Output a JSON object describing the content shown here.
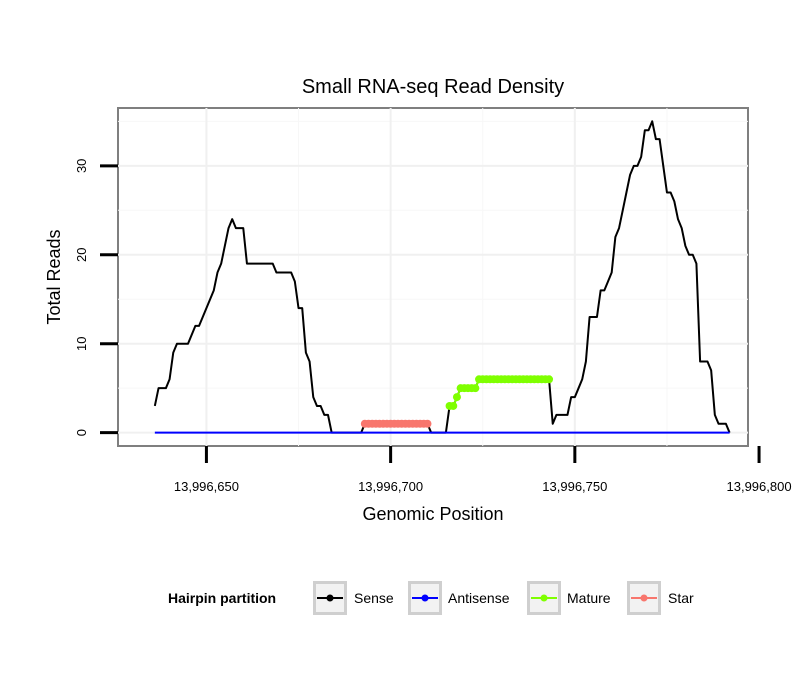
{
  "chart_data": {
    "type": "line",
    "title": "Small RNA-seq Read Density",
    "xlabel": "Genomic Position",
    "ylabel": "Total Reads",
    "xlim": [
      13996626,
      13996797
    ],
    "ylim": [
      -1.5,
      36.5
    ],
    "x_ticks": [
      13996650,
      13996700,
      13996750,
      13996800
    ],
    "x_tick_labels": [
      "13,996,650",
      "13,996,700",
      "13,996,750",
      "13,996,800"
    ],
    "y_ticks": [
      0,
      10,
      20,
      30
    ],
    "y_tick_labels": [
      "0",
      "10",
      "20",
      "30"
    ],
    "grid": true,
    "legend": {
      "title": "Hairpin partition",
      "position": "bottom",
      "entries": [
        "Sense",
        "Antisense",
        "Mature",
        "Star"
      ]
    },
    "series": [
      {
        "name": "Sense",
        "color": "#000000",
        "marker": false,
        "points": [
          [
            13996636,
            3
          ],
          [
            13996637,
            5
          ],
          [
            13996639,
            5
          ],
          [
            13996640,
            6
          ],
          [
            13996641,
            9
          ],
          [
            13996642,
            10
          ],
          [
            13996645,
            10
          ],
          [
            13996647,
            12
          ],
          [
            13996648,
            12
          ],
          [
            13996649,
            13
          ],
          [
            13996651,
            15
          ],
          [
            13996652,
            16
          ],
          [
            13996653,
            18
          ],
          [
            13996654,
            19
          ],
          [
            13996656,
            23
          ],
          [
            13996657,
            24
          ],
          [
            13996658,
            23
          ],
          [
            13996660,
            23
          ],
          [
            13996661,
            19
          ],
          [
            13996668,
            19
          ],
          [
            13996669,
            18
          ],
          [
            13996673,
            18
          ],
          [
            13996674,
            17
          ],
          [
            13996675,
            14
          ],
          [
            13996676,
            14
          ],
          [
            13996677,
            9
          ],
          [
            13996678,
            8
          ],
          [
            13996679,
            4
          ],
          [
            13996680,
            3
          ],
          [
            13996681,
            3
          ],
          [
            13996682,
            2
          ],
          [
            13996683,
            2
          ],
          [
            13996684,
            0
          ],
          [
            13996692,
            0
          ],
          [
            13996693,
            1
          ],
          [
            13996710,
            1
          ],
          [
            13996711,
            0
          ],
          [
            13996715,
            0
          ],
          [
            13996716,
            3
          ],
          [
            13996717,
            3
          ],
          [
            13996718,
            4
          ],
          [
            13996719,
            5
          ],
          [
            13996723,
            5
          ],
          [
            13996724,
            6
          ],
          [
            13996743,
            6
          ],
          [
            13996744,
            1
          ],
          [
            13996745,
            2
          ],
          [
            13996748,
            2
          ],
          [
            13996749,
            4
          ],
          [
            13996750,
            4
          ],
          [
            13996751,
            5
          ],
          [
            13996752,
            6
          ],
          [
            13996753,
            8
          ],
          [
            13996754,
            13
          ],
          [
            13996756,
            13
          ],
          [
            13996757,
            16
          ],
          [
            13996758,
            16
          ],
          [
            13996759,
            17
          ],
          [
            13996760,
            18
          ],
          [
            13996761,
            22
          ],
          [
            13996762,
            23
          ],
          [
            13996763,
            25
          ],
          [
            13996764,
            27
          ],
          [
            13996765,
            29
          ],
          [
            13996766,
            30
          ],
          [
            13996767,
            30
          ],
          [
            13996768,
            31
          ],
          [
            13996769,
            34
          ],
          [
            13996770,
            34
          ],
          [
            13996771,
            35
          ],
          [
            13996772,
            33
          ],
          [
            13996773,
            33
          ],
          [
            13996774,
            30
          ],
          [
            13996775,
            27
          ],
          [
            13996776,
            27
          ],
          [
            13996777,
            26
          ],
          [
            13996778,
            24
          ],
          [
            13996779,
            23
          ],
          [
            13996780,
            21
          ],
          [
            13996781,
            20
          ],
          [
            13996782,
            20
          ],
          [
            13996783,
            19
          ],
          [
            13996784,
            8
          ],
          [
            13996786,
            8
          ],
          [
            13996787,
            7
          ],
          [
            13996788,
            2
          ],
          [
            13996789,
            1
          ],
          [
            13996791,
            1
          ],
          [
            13996792,
            0
          ]
        ]
      },
      {
        "name": "Antisense",
        "color": "#0000ff",
        "marker": false,
        "points": [
          [
            13996636,
            0
          ],
          [
            13996792,
            0
          ]
        ]
      },
      {
        "name": "Mature",
        "color": "#7fff00",
        "marker": true,
        "points": [
          [
            13996716,
            3
          ],
          [
            13996717,
            3
          ],
          [
            13996718,
            4
          ],
          [
            13996719,
            5
          ],
          [
            13996720,
            5
          ],
          [
            13996721,
            5
          ],
          [
            13996722,
            5
          ],
          [
            13996723,
            5
          ],
          [
            13996724,
            6
          ],
          [
            13996725,
            6
          ],
          [
            13996726,
            6
          ],
          [
            13996727,
            6
          ],
          [
            13996728,
            6
          ],
          [
            13996729,
            6
          ],
          [
            13996730,
            6
          ],
          [
            13996731,
            6
          ],
          [
            13996732,
            6
          ],
          [
            13996733,
            6
          ],
          [
            13996734,
            6
          ],
          [
            13996735,
            6
          ],
          [
            13996736,
            6
          ],
          [
            13996737,
            6
          ],
          [
            13996738,
            6
          ],
          [
            13996739,
            6
          ],
          [
            13996740,
            6
          ],
          [
            13996741,
            6
          ],
          [
            13996742,
            6
          ],
          [
            13996743,
            6
          ]
        ]
      },
      {
        "name": "Star",
        "color": "#f8766d",
        "marker": true,
        "points": [
          [
            13996693,
            1
          ],
          [
            13996694,
            1
          ],
          [
            13996695,
            1
          ],
          [
            13996696,
            1
          ],
          [
            13996697,
            1
          ],
          [
            13996698,
            1
          ],
          [
            13996699,
            1
          ],
          [
            13996700,
            1
          ],
          [
            13996701,
            1
          ],
          [
            13996702,
            1
          ],
          [
            13996703,
            1
          ],
          [
            13996704,
            1
          ],
          [
            13996705,
            1
          ],
          [
            13996706,
            1
          ],
          [
            13996707,
            1
          ],
          [
            13996708,
            1
          ],
          [
            13996709,
            1
          ],
          [
            13996710,
            1
          ]
        ]
      }
    ]
  }
}
